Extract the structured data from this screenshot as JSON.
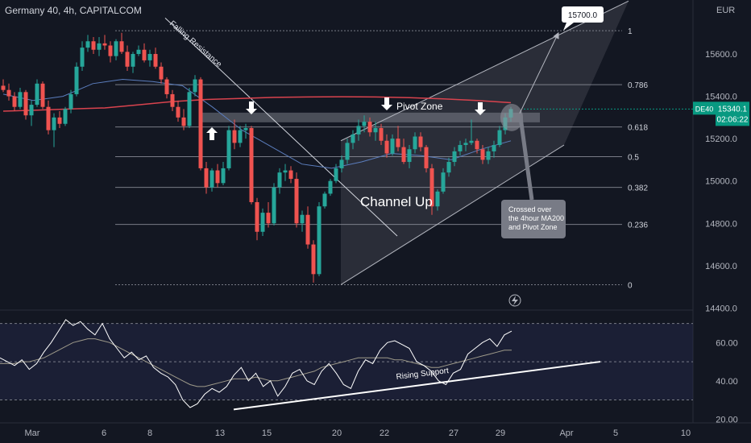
{
  "header": {
    "title": "Germany 40, 4h, CAPITALCOM",
    "currency": "EUR"
  },
  "colors": {
    "background": "#131722",
    "bull": "#26a69a",
    "bear": "#ef5350",
    "ma200": "#d9434e",
    "ma50": "#5b7dbd",
    "channel": "#b2b5be",
    "price_tag": "#089981",
    "rsi_line": "#ffffff",
    "rsi_ma": "#9e9a8a"
  },
  "price_tag": {
    "symbol": "DE40",
    "price": "15340.1",
    "countdown": "02:06:22"
  },
  "chart_data": [
    {
      "type": "candlestick",
      "title": "",
      "price_axis": {
        "ticks": [
          15600.0,
          15400.0,
          15200.0,
          15000.0,
          14800.0,
          14600.0,
          14400.0
        ],
        "tick_labels": [
          "15600.0",
          "15400.0",
          "15200.0",
          "15000.0",
          "14800.0",
          "14600.0",
          "14400.0"
        ],
        "range": [
          14390,
          15855
        ]
      },
      "time_axis": {
        "labels": [
          "Mar",
          "6",
          "8",
          "13",
          "15",
          "20",
          "22",
          "27",
          "29",
          "Apr",
          "5",
          "10"
        ]
      },
      "fibonacci": {
        "levels": [
          {
            "label": "1",
            "price": 15710
          },
          {
            "label": "0.786",
            "price": 15455
          },
          {
            "label": "0.618",
            "price": 15255
          },
          {
            "label": "0.5",
            "price": 15115
          },
          {
            "label": "0.382",
            "price": 14970
          },
          {
            "label": "0.236",
            "price": 14795
          },
          {
            "label": "0",
            "price": 14510
          }
        ]
      },
      "ohlc": [
        [
          15450,
          15480,
          15420,
          15430
        ],
        [
          15430,
          15460,
          15380,
          15400
        ],
        [
          15400,
          15420,
          15330,
          15350
        ],
        [
          15350,
          15440,
          15340,
          15420
        ],
        [
          15420,
          15430,
          15290,
          15310
        ],
        [
          15310,
          15380,
          15260,
          15360
        ],
        [
          15360,
          15480,
          15350,
          15460
        ],
        [
          15460,
          15470,
          15340,
          15350
        ],
        [
          15350,
          15380,
          15220,
          15240
        ],
        [
          15240,
          15320,
          15160,
          15300
        ],
        [
          15300,
          15330,
          15250,
          15270
        ],
        [
          15270,
          15350,
          15260,
          15340
        ],
        [
          15340,
          15430,
          15320,
          15410
        ],
        [
          15410,
          15560,
          15400,
          15540
        ],
        [
          15540,
          15660,
          15520,
          15630
        ],
        [
          15630,
          15690,
          15610,
          15660
        ],
        [
          15660,
          15680,
          15600,
          15620
        ],
        [
          15620,
          15680,
          15590,
          15650
        ],
        [
          15650,
          15690,
          15620,
          15640
        ],
        [
          15640,
          15660,
          15560,
          15590
        ],
        [
          15590,
          15670,
          15570,
          15660
        ],
        [
          15660,
          15700,
          15600,
          15610
        ],
        [
          15610,
          15640,
          15520,
          15540
        ],
        [
          15540,
          15610,
          15510,
          15600
        ],
        [
          15600,
          15640,
          15590,
          15620
        ],
        [
          15620,
          15650,
          15560,
          15570
        ],
        [
          15570,
          15620,
          15540,
          15600
        ],
        [
          15600,
          15630,
          15530,
          15540
        ],
        [
          15540,
          15560,
          15460,
          15480
        ],
        [
          15480,
          15490,
          15390,
          15410
        ],
        [
          15410,
          15430,
          15330,
          15350
        ],
        [
          15350,
          15380,
          15280,
          15300
        ],
        [
          15300,
          15340,
          15240,
          15260
        ],
        [
          15260,
          15440,
          15250,
          15420
        ],
        [
          15420,
          15500,
          15400,
          15480
        ],
        [
          15480,
          15490,
          15050,
          15060
        ],
        [
          15060,
          15090,
          14940,
          14970
        ],
        [
          14970,
          15060,
          14950,
          15050
        ],
        [
          15050,
          15080,
          14970,
          14990
        ],
        [
          14990,
          15090,
          14980,
          15060
        ],
        [
          15060,
          15260,
          15050,
          15240
        ],
        [
          15240,
          15290,
          15150,
          15180
        ],
        [
          15180,
          15260,
          15160,
          15240
        ],
        [
          15240,
          15270,
          15200,
          15250
        ],
        [
          15250,
          15260,
          14890,
          14900
        ],
        [
          14900,
          14920,
          14720,
          14760
        ],
        [
          14760,
          14870,
          14740,
          14850
        ],
        [
          14850,
          14900,
          14780,
          14800
        ],
        [
          14800,
          14990,
          14790,
          14970
        ],
        [
          14970,
          15060,
          14940,
          15040
        ],
        [
          15040,
          15080,
          15000,
          15050
        ],
        [
          15050,
          15070,
          14990,
          15010
        ],
        [
          15010,
          15040,
          14780,
          14800
        ],
        [
          14800,
          14860,
          14760,
          14840
        ],
        [
          14840,
          14880,
          14680,
          14700
        ],
        [
          14700,
          14720,
          14520,
          14560
        ],
        [
          14560,
          14900,
          14550,
          14880
        ],
        [
          14880,
          14950,
          14870,
          14940
        ],
        [
          14940,
          15010,
          14930,
          15000
        ],
        [
          15000,
          15080,
          14990,
          15060
        ],
        [
          15060,
          15120,
          15040,
          15100
        ],
        [
          15100,
          15200,
          15080,
          15180
        ],
        [
          15180,
          15240,
          15150,
          15220
        ],
        [
          15220,
          15290,
          15190,
          15260
        ],
        [
          15260,
          15310,
          15230,
          15280
        ],
        [
          15280,
          15300,
          15210,
          15230
        ],
        [
          15230,
          15280,
          15190,
          15250
        ],
        [
          15250,
          15270,
          15170,
          15190
        ],
        [
          15190,
          15220,
          15110,
          15130
        ],
        [
          15130,
          15220,
          15120,
          15200
        ],
        [
          15200,
          15260,
          15140,
          15160
        ],
        [
          15160,
          15200,
          15080,
          15090
        ],
        [
          15090,
          15170,
          15060,
          15150
        ],
        [
          15150,
          15230,
          15130,
          15210
        ],
        [
          15210,
          15230,
          15140,
          15160
        ],
        [
          15160,
          15170,
          15040,
          15060
        ],
        [
          15060,
          15080,
          14840,
          14880
        ],
        [
          14880,
          14960,
          14860,
          14950
        ],
        [
          14950,
          15060,
          14940,
          15040
        ],
        [
          15040,
          15110,
          15020,
          15090
        ],
        [
          15090,
          15160,
          15070,
          15140
        ],
        [
          15140,
          15190,
          15120,
          15170
        ],
        [
          15170,
          15200,
          15140,
          15180
        ],
        [
          15180,
          15290,
          15170,
          15190
        ],
        [
          15190,
          15200,
          15130,
          15150
        ],
        [
          15150,
          15170,
          15080,
          15100
        ],
        [
          15100,
          15160,
          15080,
          15140
        ],
        [
          15140,
          15190,
          15110,
          15170
        ],
        [
          15170,
          15260,
          15160,
          15240
        ],
        [
          15240,
          15320,
          15220,
          15300
        ],
        [
          15300,
          15350,
          15280,
          15340
        ]
      ],
      "ma200": [
        15330,
        15335,
        15340,
        15345,
        15360,
        15375,
        15385,
        15390,
        15395,
        15397,
        15398,
        15397,
        15394,
        15388,
        15380,
        15370
      ],
      "ma50": [
        15410,
        15380,
        15400,
        15460,
        15480,
        15470,
        15450,
        15350,
        15240,
        15160,
        15080,
        15060,
        15090,
        15130,
        15120,
        15100,
        15150,
        15190
      ],
      "annotations": [
        "Falling Resistance",
        "Pivot Zone",
        "Channel Up",
        "Crossed over\nthe 4hour MA200\nand Pivot Zone",
        "15700.0"
      ]
    },
    {
      "type": "line",
      "title": "",
      "y_axis": {
        "ticks": [
          60.0,
          40.0,
          20.0
        ],
        "tick_labels": [
          "60.00",
          "40.00",
          "20.00"
        ],
        "range": [
          18,
          77
        ]
      },
      "series": [
        {
          "values": [
            52,
            50,
            48,
            51,
            46,
            49,
            55,
            60,
            66,
            72,
            69,
            71,
            67,
            64,
            70,
            62,
            57,
            52,
            55,
            51,
            53,
            47,
            44,
            42,
            38,
            30,
            26,
            28,
            33,
            36,
            34,
            37,
            43,
            47,
            40,
            44,
            37,
            40,
            32,
            37,
            44,
            46,
            40,
            38,
            45,
            49,
            44,
            38,
            36,
            45,
            51,
            49,
            56,
            60,
            61,
            59,
            57,
            50,
            48,
            45,
            40,
            38,
            44,
            46,
            54,
            57,
            60,
            62,
            58,
            64,
            66
          ]
        },
        {
          "values": [
            49,
            49,
            49,
            50,
            50,
            51,
            52,
            54,
            56,
            58,
            60,
            61,
            62,
            62,
            61,
            60,
            58,
            56,
            54,
            52,
            50,
            48,
            46,
            44,
            42,
            40,
            38,
            37,
            37,
            38,
            39,
            40,
            41,
            41,
            41,
            42,
            41,
            40,
            40,
            41,
            42,
            43,
            44,
            45,
            47,
            48,
            49,
            50,
            51,
            52,
            52,
            52,
            52,
            52,
            51,
            51,
            50,
            49,
            48,
            47,
            47,
            48,
            49,
            50,
            51,
            52,
            53,
            54,
            55,
            56,
            56
          ]
        }
      ],
      "annotations": [
        "Rising Support"
      ]
    }
  ]
}
